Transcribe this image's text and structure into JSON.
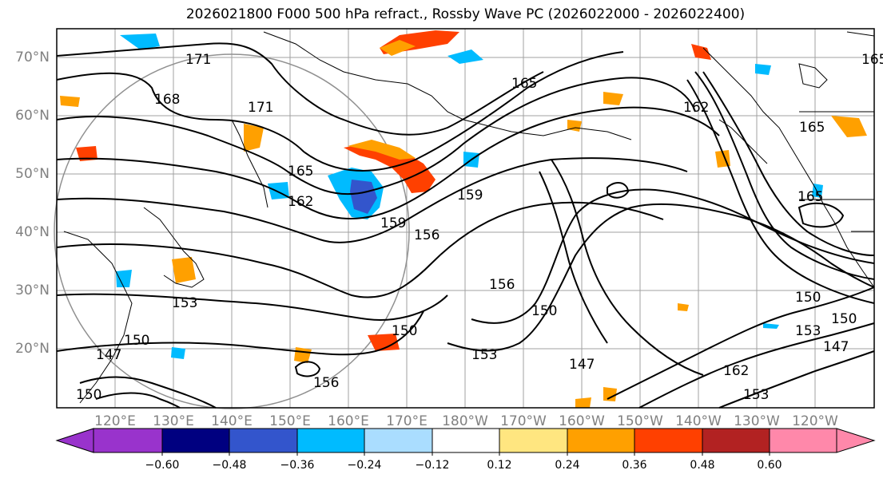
{
  "title": "2026021800 F000 500 hPa refract., Rossby Wave PC (2026022000 - 2026022400)",
  "lat_labels": [
    "70°N",
    "60°N",
    "50°N",
    "40°N",
    "30°N",
    "20°N"
  ],
  "lon_labels": [
    "120°E",
    "130°E",
    "140°E",
    "150°E",
    "160°E",
    "170°E",
    "180°W",
    "170°W",
    "160°W",
    "150°W",
    "140°W",
    "130°W",
    "120°W"
  ],
  "contour_labels": [
    "171",
    "168",
    "171",
    "165",
    "162",
    "159",
    "156",
    "159",
    "165",
    "162",
    "165",
    "165",
    "165",
    "153",
    "150",
    "150",
    "156",
    "153",
    "150",
    "156",
    "147",
    "150",
    "150",
    "147",
    "153",
    "153",
    "150",
    "147",
    "162"
  ],
  "colorbar": {
    "ticks": [
      "−0.60",
      "−0.48",
      "−0.36",
      "−0.24",
      "−0.12",
      "0.12",
      "0.24",
      "0.36",
      "0.48",
      "0.60"
    ],
    "colors": [
      "#9933cc",
      "#000080",
      "#3355cc",
      "#00bbff",
      "#aaddff",
      "#ffffff",
      "#ffe680",
      "#ffa000",
      "#ff4000",
      "#b22222",
      "#ff88aa"
    ]
  }
}
